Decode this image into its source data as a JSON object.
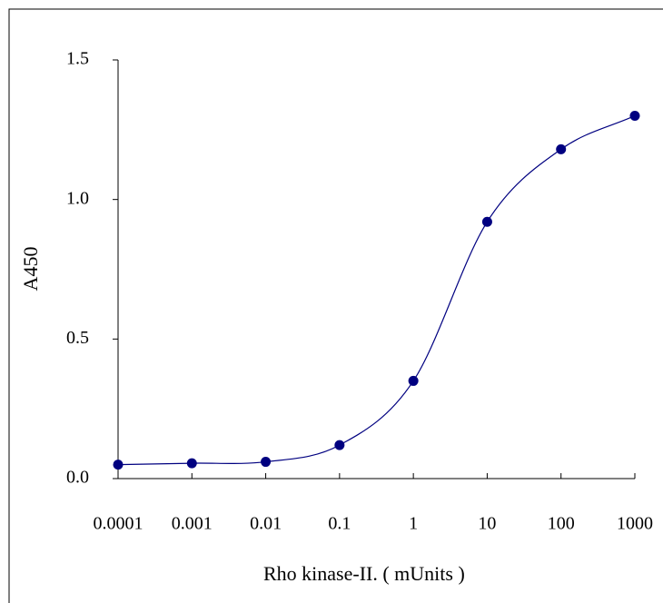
{
  "chart_data": {
    "type": "line",
    "x_scale": "log",
    "x_label": "Rho kinase-II. ( mUnits )",
    "y_label": "A450",
    "x": [
      0.0001,
      0.001,
      0.01,
      0.1,
      1,
      10,
      100,
      1000
    ],
    "series": [
      {
        "color": "#000080",
        "values": [
          0.05,
          0.055,
          0.06,
          0.12,
          0.35,
          0.92,
          1.18,
          1.3
        ]
      }
    ],
    "xlim": [
      0.0001,
      1000
    ],
    "xticks": [
      0.0001,
      0.001,
      0.01,
      0.1,
      1,
      10,
      100,
      1000
    ],
    "ylim": [
      0,
      1.5
    ],
    "yticks": [
      {
        "value": 0,
        "label": "0.0"
      },
      {
        "value": 0.5,
        "label": "0.5"
      },
      {
        "value": 1,
        "label": "1.0"
      },
      {
        "value": 1.5,
        "label": "1.5"
      }
    ]
  }
}
